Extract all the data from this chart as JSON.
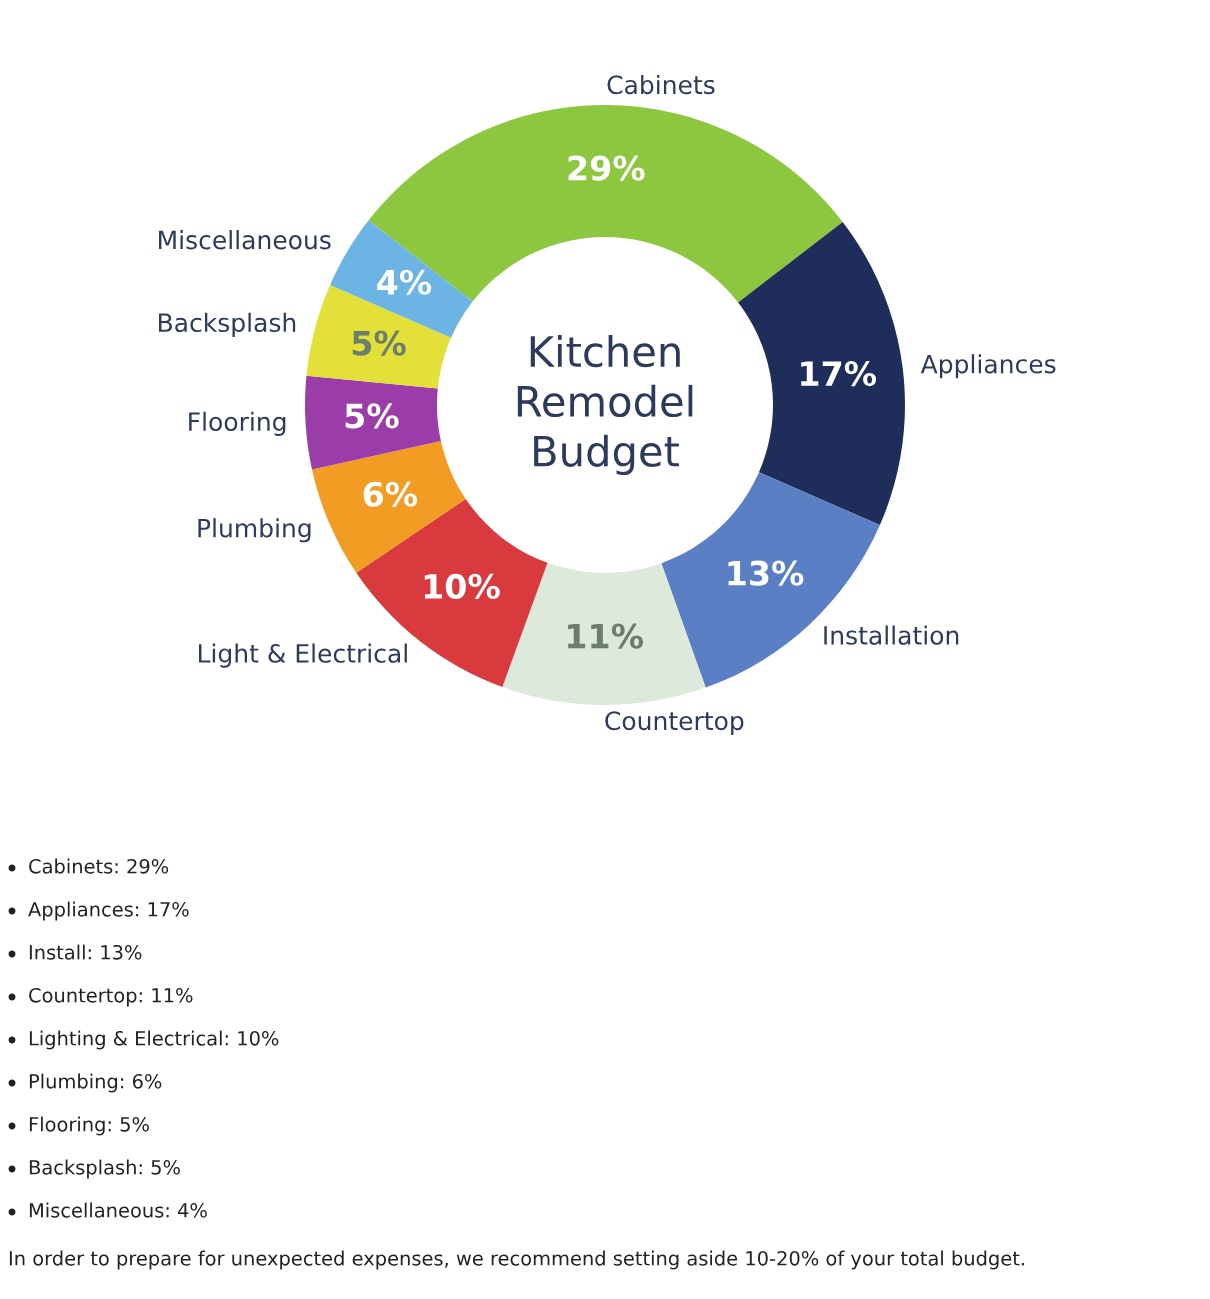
{
  "chart_data": {
    "type": "donut",
    "title": "Kitchen Remodel Budget",
    "categories": [
      "Cabinets",
      "Appliances",
      "Installation",
      "Countertop",
      "Light & Electrical",
      "Plumbing",
      "Flooring",
      "Backsplash",
      "Miscellaneous"
    ],
    "values": [
      29,
      17,
      13,
      11,
      10,
      6,
      5,
      5,
      4
    ],
    "value_labels": [
      "29%",
      "17%",
      "13%",
      "11%",
      "10%",
      "6%",
      "5%",
      "5%",
      "4%"
    ],
    "colors": [
      "#8dc63f",
      "#1f2d5a",
      "#5b7fc4",
      "#dde9da",
      "#d93a3e",
      "#f39c24",
      "#9b3ca8",
      "#e3e03a",
      "#6cb4e4"
    ],
    "legend": false,
    "annotations": [
      "Cabinets: 29%",
      "Appliances: 17%",
      "Install: 13%",
      "Countertop: 11%",
      "Lighting & Electrical: 10%",
      "Plumbing: 6%",
      "Flooring: 5%",
      "Backsplash: 5%",
      "Miscellaneous: 4%",
      "In order to prepare for unexpected expenses, we recommend setting aside 10-20% of your total budget."
    ]
  }
}
